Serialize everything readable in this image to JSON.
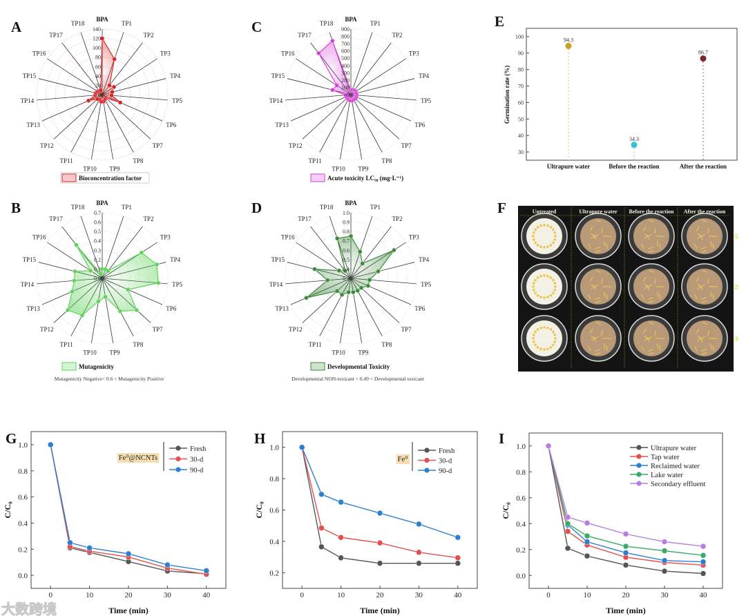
{
  "panel_labels": {
    "A": "A",
    "B": "B",
    "C": "C",
    "D": "D",
    "E": "E",
    "F": "F",
    "G": "G",
    "H": "H",
    "I": "I"
  },
  "watermark": "大数跨境",
  "photo": {
    "columns": [
      "Untreated",
      "Ultrapure water",
      "Before the reaction",
      "After the reaction"
    ],
    "rows": [
      "①",
      "②",
      "③"
    ]
  },
  "chart_data": [
    {
      "id": "A",
      "type": "radar",
      "axes": [
        "BPA",
        "TP1",
        "TP2",
        "TP3",
        "TP4",
        "TP5",
        "TP6",
        "TP7",
        "TP8",
        "TP9",
        "TP10",
        "TP11",
        "TP12",
        "TP13",
        "TP14",
        "TP15",
        "TP16",
        "TP17",
        "TP18"
      ],
      "range": [
        0,
        140
      ],
      "ticks": [
        "0",
        "20",
        "40",
        "60",
        "80",
        "100",
        "120",
        "140"
      ],
      "series": [
        {
          "name": "Bioconcentration factor",
          "values": [
            120,
            80,
            25,
            30,
            22,
            20,
            42,
            10,
            12,
            15,
            15,
            12,
            14,
            32,
            15,
            14,
            12,
            10,
            10
          ]
        }
      ],
      "color": "#d9262b"
    },
    {
      "id": "C",
      "type": "radar",
      "axes": [
        "BPA",
        "TP1",
        "TP2",
        "TP3",
        "TP4",
        "TP5",
        "TP6",
        "TP7",
        "TP8",
        "TP9",
        "TP10",
        "TP11",
        "TP12",
        "TP13",
        "TP14",
        "TP15",
        "TP16",
        "TP17",
        "TP18"
      ],
      "range": [
        0,
        900
      ],
      "ticks": [
        "0",
        "100",
        "200",
        "300",
        "400",
        "500",
        "600",
        "700",
        "800",
        "900"
      ],
      "series": [
        {
          "name": "Acute toxicity LC₅₀ (mg·L⁻¹)",
          "values": [
            60,
            70,
            75,
            80,
            75,
            80,
            80,
            85,
            80,
            85,
            80,
            75,
            70,
            70,
            75,
            260,
            230,
            720,
            780
          ]
        }
      ],
      "color": "#d63fd6"
    },
    {
      "id": "B",
      "type": "radar",
      "axes": [
        "BPA",
        "TP1",
        "TP2",
        "TP3",
        "TP4",
        "TP5",
        "TP6",
        "TP7",
        "TP8",
        "TP9",
        "TP10",
        "TP11",
        "TP12",
        "TP13",
        "TP14",
        "TP15",
        "TP16",
        "TP17",
        "TP18"
      ],
      "range": [
        0,
        0.7
      ],
      "ticks": [
        "0.0",
        "0.1",
        "0.2",
        "0.3",
        "0.4",
        "0.5",
        "0.6",
        "0.7"
      ],
      "series": [
        {
          "name": "Mutagenicity",
          "values": [
            0.1,
            0.1,
            0.1,
            0.5,
            0.6,
            0.6,
            0.3,
            0.5,
            0.4,
            0.2,
            0.25,
            0.45,
            0.5,
            0.35,
            0.3,
            0.3,
            0.15,
            0.45,
            0.05
          ]
        }
      ],
      "note": "Mutagenicity Negative< 0.6 < Mutagenicity Positive",
      "color": "#5fd35a"
    },
    {
      "id": "D",
      "type": "radar",
      "axes": [
        "BPA",
        "TP1",
        "TP2",
        "TP3",
        "TP4",
        "TP5",
        "TP6",
        "TP7",
        "TP8",
        "TP9",
        "TP10",
        "TP11",
        "TP12",
        "TP13",
        "TP14",
        "TP15",
        "TP16",
        "TP17",
        "TP18"
      ],
      "range": [
        0.3,
        1.0
      ],
      "ticks": [
        "0.3",
        "0.4",
        "0.5",
        "0.6",
        "0.7",
        "0.8",
        "0.9",
        "1.0"
      ],
      "series": [
        {
          "name": "Developmental Toxicity",
          "values": [
            0.75,
            0.6,
            0.5,
            0.85,
            0.6,
            0.5,
            0.5,
            0.45,
            0.45,
            0.45,
            0.45,
            0.5,
            0.5,
            0.82,
            0.55,
            0.7,
            0.45,
            0.4,
            0.75
          ]
        }
      ],
      "note": "Developmental NON-toxicant < 0.49 < Developmental toxicant",
      "color": "#3c8a3a"
    },
    {
      "id": "E",
      "type": "scatter",
      "categories": [
        "Ultrapure water",
        "Before the reaction",
        "After the reaction"
      ],
      "values": [
        94.3,
        34.3,
        86.7
      ],
      "labels": [
        "94.3",
        "34.3",
        "86.7"
      ],
      "colors": [
        "#c9a227",
        "#33c3cf",
        "#7a2a2a"
      ],
      "ylabel": "Germination rate (%)",
      "ylim": [
        25,
        105
      ],
      "yticks": [
        "30",
        "40",
        "50",
        "60",
        "70",
        "80",
        "90",
        "100"
      ]
    },
    {
      "id": "G",
      "type": "line",
      "x": [
        0,
        5,
        10,
        20,
        30,
        40
      ],
      "xticks": [
        "0",
        "10",
        "20",
        "30",
        "40"
      ],
      "yticks": [
        "0.0",
        "0.2",
        "0.4",
        "0.6",
        "0.8",
        "1.0"
      ],
      "xlabel": "Time (min)",
      "ylabel": "C/C₀",
      "xlim": [
        -5,
        45
      ],
      "ylim": [
        -0.1,
        1.1
      ],
      "annotation": "Fe⁰@NCNTs",
      "series": [
        {
          "name": "Fresh",
          "color": "#555555",
          "values": [
            1,
            0.21,
            0.175,
            0.105,
            0.033,
            0.012
          ]
        },
        {
          "name": "30-d",
          "color": "#e0504f",
          "values": [
            1,
            0.22,
            0.185,
            0.14,
            0.055,
            0.008
          ]
        },
        {
          "name": "90-d",
          "color": "#2f7fd0",
          "values": [
            1,
            0.25,
            0.21,
            0.165,
            0.08,
            0.035
          ]
        }
      ]
    },
    {
      "id": "H",
      "type": "line",
      "x": [
        0,
        5,
        10,
        20,
        30,
        40
      ],
      "xticks": [
        "0",
        "10",
        "20",
        "30",
        "40"
      ],
      "yticks": [
        "0.2",
        "0.4",
        "0.6",
        "0.8",
        "1.0"
      ],
      "xlabel": "Time (min)",
      "ylabel": "C/C₀",
      "xlim": [
        -5,
        45
      ],
      "ylim": [
        0.1,
        1.1
      ],
      "annotation": "Fe⁰",
      "series": [
        {
          "name": "Fresh",
          "color": "#555555",
          "values": [
            1,
            0.365,
            0.295,
            0.26,
            0.26,
            0.26
          ]
        },
        {
          "name": "30-d",
          "color": "#e0504f",
          "values": [
            1,
            0.485,
            0.425,
            0.39,
            0.33,
            0.295
          ]
        },
        {
          "name": "90-d",
          "color": "#2f7fd0",
          "values": [
            1,
            0.7,
            0.65,
            0.58,
            0.51,
            0.425
          ]
        }
      ]
    },
    {
      "id": "I",
      "type": "line",
      "x": [
        0,
        5,
        10,
        20,
        30,
        40
      ],
      "xticks": [
        "0",
        "10",
        "20",
        "30",
        "40"
      ],
      "yticks": [
        "0.0",
        "0.2",
        "0.4",
        "0.6",
        "0.8",
        "1.0"
      ],
      "xlabel": "Time (min)",
      "ylabel": "C/C₀",
      "xlim": [
        -5,
        45
      ],
      "ylim": [
        -0.1,
        1.1
      ],
      "series": [
        {
          "name": "Ultrapure water",
          "color": "#555555",
          "values": [
            1,
            0.21,
            0.15,
            0.08,
            0.033,
            0.015
          ]
        },
        {
          "name": "Tap water",
          "color": "#e0504f",
          "values": [
            1,
            0.34,
            0.235,
            0.14,
            0.1,
            0.08
          ]
        },
        {
          "name": "Reclaimed water",
          "color": "#2f7fd0",
          "values": [
            1,
            0.39,
            0.26,
            0.175,
            0.115,
            0.105
          ]
        },
        {
          "name": "Lake water",
          "color": "#3aaa6a",
          "values": [
            1,
            0.4,
            0.305,
            0.225,
            0.19,
            0.155
          ]
        },
        {
          "name": "Secondary effluent",
          "color": "#b77ee0",
          "values": [
            1,
            0.45,
            0.405,
            0.32,
            0.26,
            0.225
          ]
        }
      ]
    }
  ]
}
